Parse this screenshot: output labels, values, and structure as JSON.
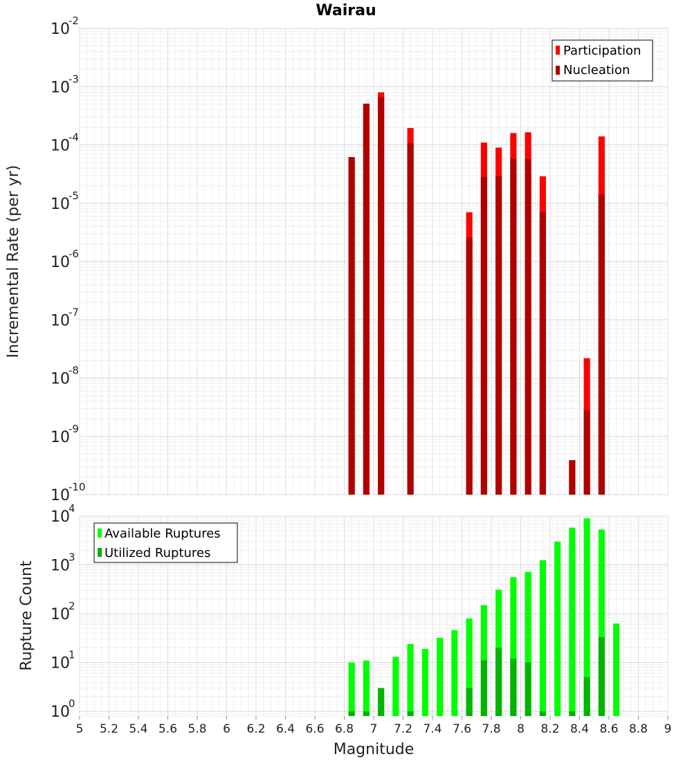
{
  "chart_data": [
    {
      "type": "bar",
      "title": "Wairau",
      "ylabel": "Incremental Rate (per yr)",
      "xlabel": "",
      "yscale": "log",
      "ylim": [
        1e-10,
        0.01
      ],
      "xlim": [
        5,
        9
      ],
      "y_tick_mantissa": "10",
      "y_tick_exponents": [
        "-10",
        "-9",
        "-8",
        "-7",
        "-6",
        "-5",
        "-4",
        "-3",
        "-2"
      ],
      "legend_position": "top-right",
      "legend": [
        "Participation",
        "Nucleation"
      ],
      "colors": {
        "Participation": "#ff0000",
        "Nucleation": "#b10000"
      },
      "x": [
        6.85,
        6.95,
        7.05,
        7.25,
        7.65,
        7.75,
        7.85,
        7.95,
        8.05,
        8.15,
        8.35,
        8.45,
        8.55
      ],
      "series": [
        {
          "name": "Participation",
          "values": [
            6.2e-05,
            0.00051,
            0.0008,
            0.000195,
            7e-06,
            0.00011,
            9e-05,
            0.00016,
            0.000165,
            2.9e-05,
            3.9e-10,
            2.2e-08,
            0.00014
          ]
        },
        {
          "name": "Nucleation",
          "values": [
            6.2e-05,
            0.00051,
            0.00065,
            0.000108,
            2.6e-06,
            2.8e-05,
            2.9e-05,
            5.8e-05,
            5.8e-05,
            7e-06,
            3.9e-10,
            2.8e-09,
            1.4e-05
          ]
        }
      ]
    },
    {
      "type": "bar",
      "title": "",
      "ylabel": "Rupture Count",
      "xlabel": "Magnitude",
      "yscale": "log",
      "ylim": [
        0.8,
        10000
      ],
      "xlim": [
        5,
        9
      ],
      "y_tick_mantissa": "10",
      "y_tick_exponents": [
        "0",
        "1",
        "2",
        "3",
        "4"
      ],
      "x_ticks": [
        "5",
        "5.2",
        "5.4",
        "5.6",
        "5.8",
        "6",
        "6.2",
        "6.4",
        "6.6",
        "6.8",
        "7",
        "7.2",
        "7.4",
        "7.6",
        "7.8",
        "8",
        "8.2",
        "8.4",
        "8.6",
        "8.8",
        "9"
      ],
      "legend_position": "top-left",
      "legend": [
        "Available Ruptures",
        "Utilized Ruptures"
      ],
      "colors": {
        "Available Ruptures": "#00ff00",
        "Utilized Ruptures": "#00b400"
      },
      "x": [
        6.85,
        6.95,
        7.05,
        7.15,
        7.25,
        7.35,
        7.45,
        7.55,
        7.65,
        7.75,
        7.85,
        7.95,
        8.05,
        8.15,
        8.25,
        8.35,
        8.45,
        8.55,
        8.65
      ],
      "series": [
        {
          "name": "Available Ruptures",
          "values": [
            10,
            11,
            3,
            13,
            24,
            19,
            32,
            46,
            80,
            150,
            310,
            560,
            720,
            1250,
            3000,
            5800,
            9000,
            5300,
            63
          ]
        },
        {
          "name": "Utilized Ruptures",
          "values": [
            1,
            1,
            3,
            0,
            1,
            0,
            0,
            0,
            3,
            11,
            20,
            12,
            10,
            1,
            0,
            1,
            5,
            33,
            0
          ]
        }
      ]
    }
  ]
}
